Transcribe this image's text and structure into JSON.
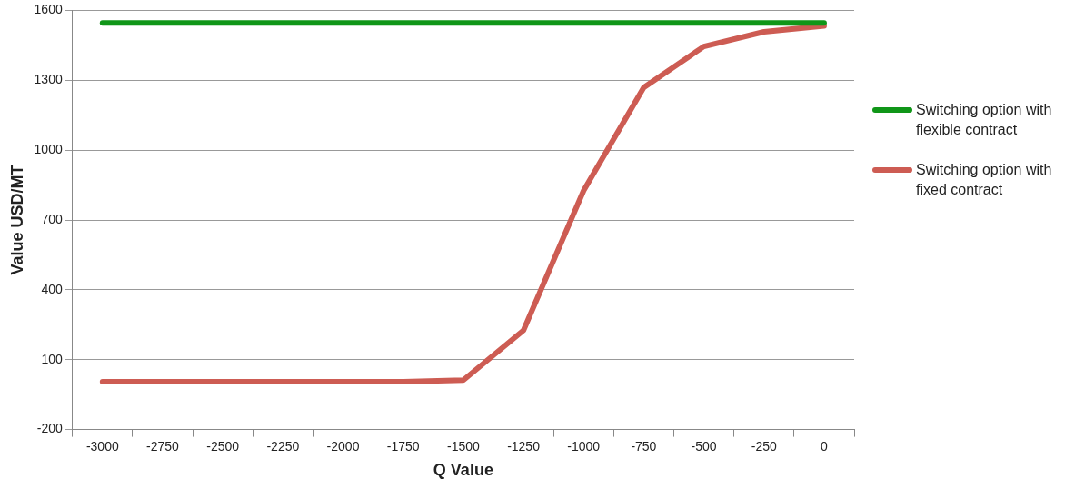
{
  "chart_data": {
    "type": "line",
    "xlabel": "Q Value",
    "ylabel": "Value USD/MT",
    "categories": [
      "-3000",
      "-2750",
      "-2500",
      "-2250",
      "-2000",
      "-1750",
      "-1500",
      "-1250",
      "-1000",
      "-750",
      "-500",
      "-250",
      "0"
    ],
    "series": [
      {
        "name": "Switching option with flexible contract",
        "color": "#109618",
        "values": [
          1546,
          1546,
          1546,
          1546,
          1546,
          1546,
          1546,
          1546,
          1546,
          1546,
          1546,
          1546,
          1546
        ]
      },
      {
        "name": "Switching option with fixed contract",
        "color": "#cd5c53",
        "values": [
          5,
          5,
          5,
          5,
          5,
          5,
          12,
          226,
          826,
          1269,
          1445,
          1508,
          1533
        ]
      }
    ],
    "ylim": [
      -200,
      1600
    ],
    "yticks": [
      -200,
      100,
      400,
      700,
      1000,
      1300,
      1600
    ],
    "grid": "y",
    "legend": "right",
    "marker": "none",
    "line_style": "solid"
  }
}
